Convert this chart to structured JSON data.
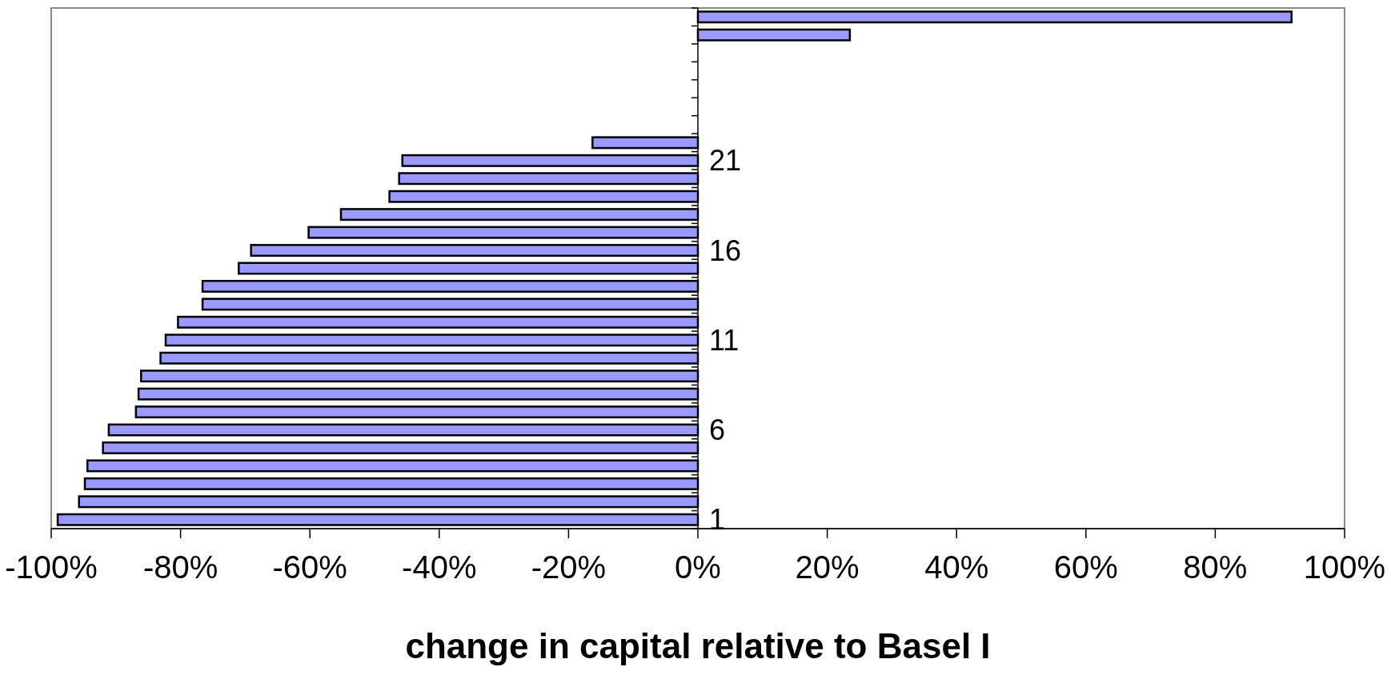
{
  "chart_data": {
    "type": "bar",
    "orientation": "horizontal",
    "xlabel": "change in capital relative to Basel I",
    "categories": [
      null,
      null,
      null,
      null,
      null,
      null,
      null,
      null,
      "21",
      null,
      null,
      null,
      null,
      "16",
      null,
      null,
      null,
      null,
      "11",
      null,
      null,
      null,
      null,
      "6",
      null,
      null,
      null,
      null,
      "1"
    ],
    "values": [
      91.8,
      23.5,
      null,
      null,
      null,
      null,
      null,
      -16.3,
      -45.7,
      -46.2,
      -47.7,
      -55.2,
      -60.2,
      -69.1,
      -71.0,
      -76.6,
      -76.6,
      -80.4,
      -82.3,
      -83.1,
      -86.1,
      -86.5,
      -86.9,
      -91.1,
      -92.0,
      -94.4,
      -94.8,
      -95.7,
      -99.0
    ],
    "color": "#9999ff",
    "xlim": [
      -100,
      100
    ],
    "xticks": [
      {
        "value": -100,
        "label": "-100%"
      },
      {
        "value": -80,
        "label": "-80%"
      },
      {
        "value": -60,
        "label": "-60%"
      },
      {
        "value": -40,
        "label": "-40%"
      },
      {
        "value": -20,
        "label": "-20%"
      },
      {
        "value": 0,
        "label": "0%"
      },
      {
        "value": 20,
        "label": "20%"
      },
      {
        "value": 40,
        "label": "40%"
      },
      {
        "value": 60,
        "label": "60%"
      },
      {
        "value": 80,
        "label": "80%"
      },
      {
        "value": 100,
        "label": "100%"
      }
    ],
    "grid": false,
    "legend": false
  }
}
